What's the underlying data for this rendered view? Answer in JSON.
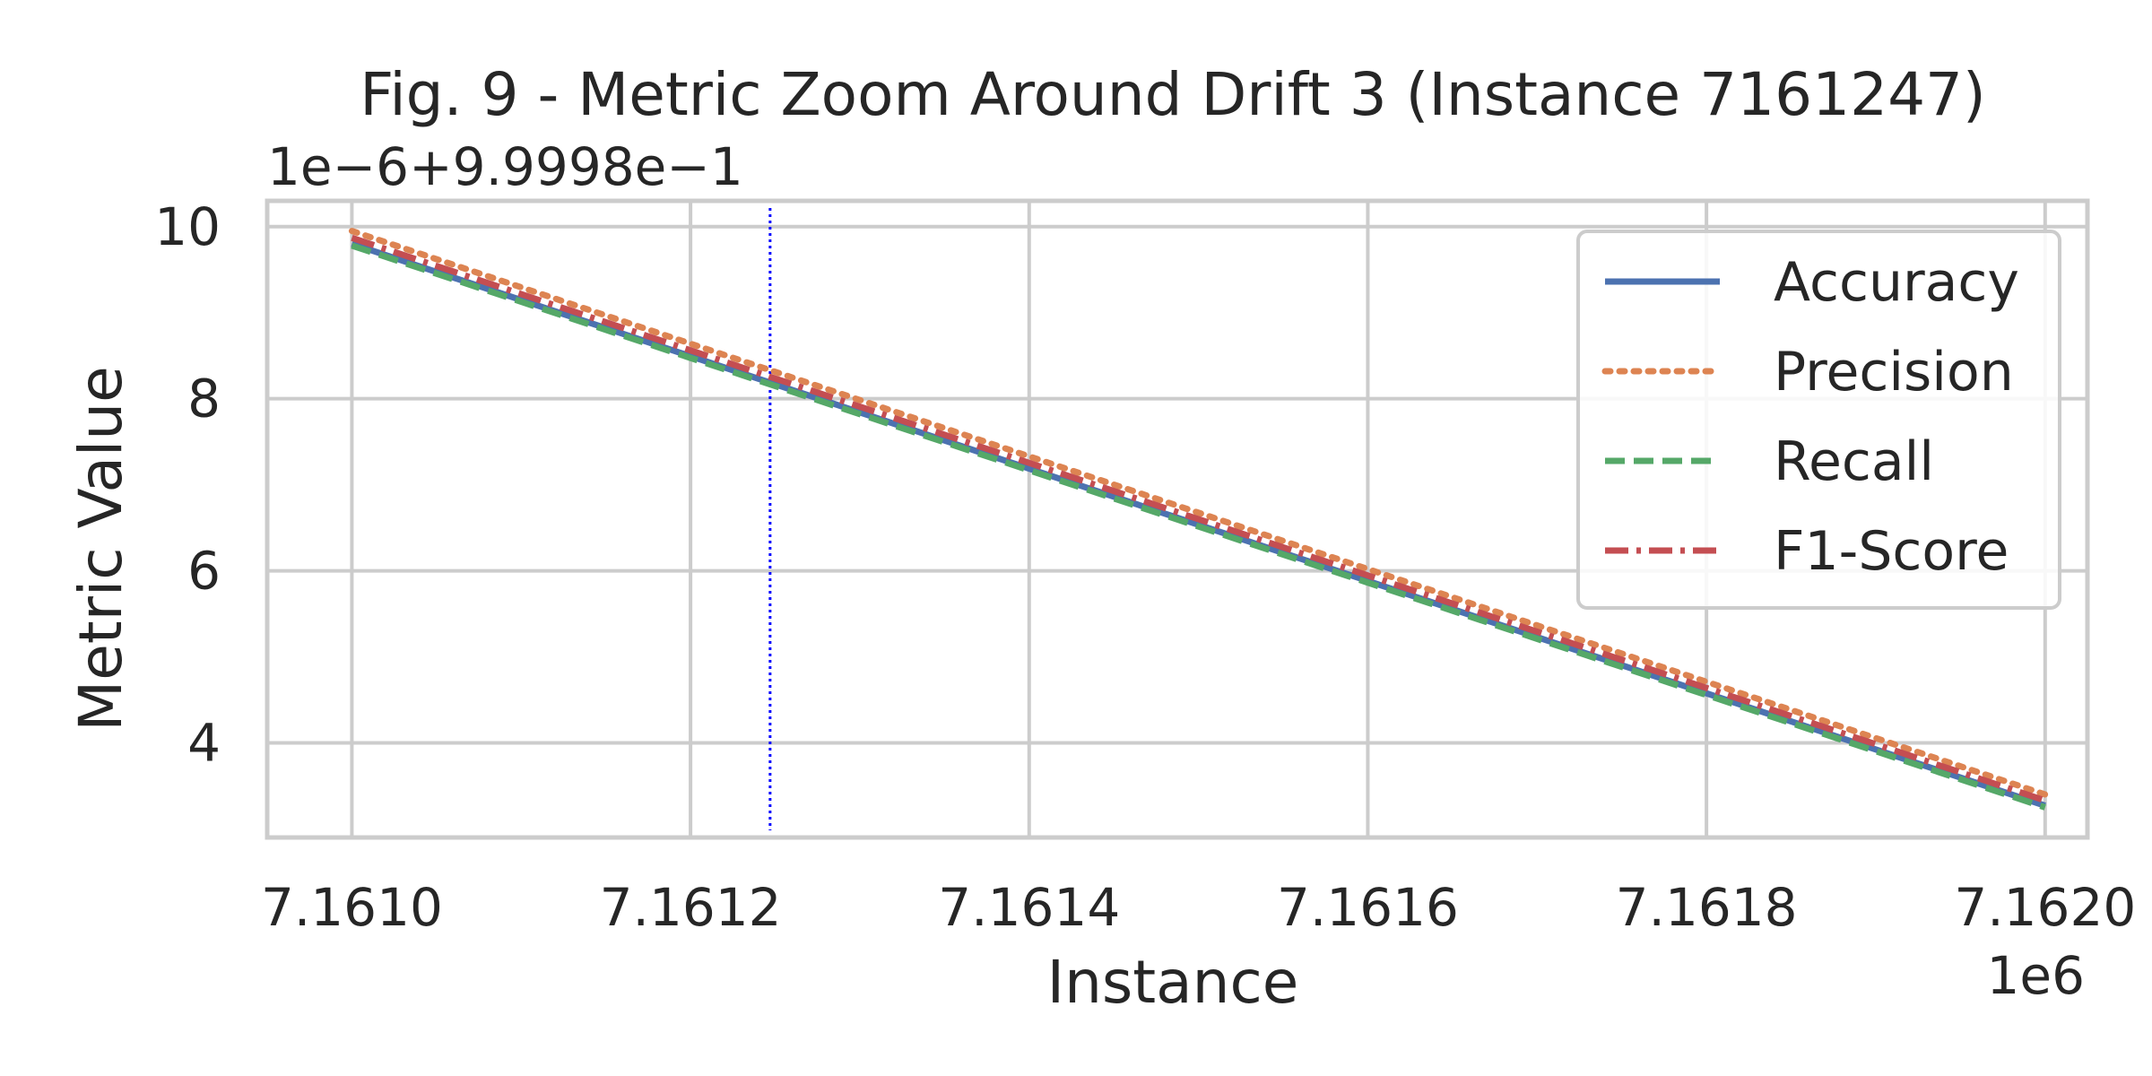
{
  "chart_data": {
    "type": "line",
    "title": "Fig. 9 - Metric Zoom Around Drift 3 (Instance 7161247)",
    "xlabel": "Instance",
    "ylabel": "Metric Value",
    "x_offset_text": "1e6",
    "y_offset_text": "1e−6+9.9998e−1",
    "xlim": [
      7160950,
      7162025
    ],
    "ylim": [
      2.9,
      10.3
    ],
    "x_ticks": [
      7161000,
      7161200,
      7161400,
      7161600,
      7161800,
      7162000
    ],
    "x_tick_labels": [
      "7.1610",
      "7.1612",
      "7.1614",
      "7.1616",
      "7.1618",
      "7.1620"
    ],
    "y_ticks": [
      4,
      6,
      8,
      10
    ],
    "y_tick_labels": [
      "4",
      "6",
      "8",
      "10"
    ],
    "grid": true,
    "legend_position": "upper right",
    "drift_marker": {
      "x": 7161247,
      "color": "#0000ff",
      "style": "dotted"
    },
    "series": [
      {
        "name": "Accuracy",
        "color": "#4c72b0",
        "dash": "solid",
        "x": [
          7161000,
          7162000
        ],
        "y": [
          9.8,
          3.27
        ]
      },
      {
        "name": "Precision",
        "color": "#dd8452",
        "dash": "dotted",
        "x": [
          7161000,
          7162000
        ],
        "y": [
          9.95,
          3.4
        ]
      },
      {
        "name": "Recall",
        "color": "#55a868",
        "dash": "dashed",
        "x": [
          7161000,
          7162000
        ],
        "y": [
          9.78,
          3.25
        ]
      },
      {
        "name": "F1-Score",
        "color": "#c44e52",
        "dash": "dashdot",
        "x": [
          7161000,
          7162000
        ],
        "y": [
          9.87,
          3.33
        ]
      }
    ]
  }
}
